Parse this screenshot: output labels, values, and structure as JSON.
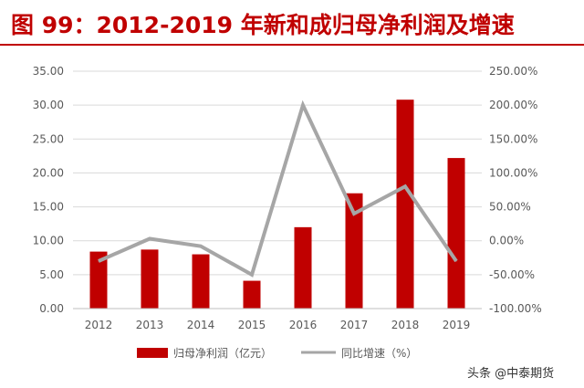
{
  "title": "图 99：2012-2019 年新和成归母净利润及增速",
  "watermark": "头条 @中泰期货",
  "colors": {
    "bar": "#c00000",
    "line": "#a6a6a6",
    "title": "#c00000",
    "axis_text": "#595959",
    "grid": "#d9d9d9"
  },
  "chart_data": {
    "type": "bar",
    "categories": [
      "2012",
      "2013",
      "2014",
      "2015",
      "2016",
      "2017",
      "2018",
      "2019"
    ],
    "series": [
      {
        "name": "归母净利润（亿元）",
        "type": "bar",
        "axis": "left",
        "values": [
          8.4,
          8.7,
          8.0,
          4.1,
          12.0,
          17.0,
          30.8,
          22.2
        ]
      },
      {
        "name": "同比增速（%）",
        "type": "line",
        "axis": "right",
        "values": [
          -30.0,
          3.0,
          -8.0,
          -50.0,
          200.0,
          40.0,
          80.0,
          -30.0
        ]
      }
    ],
    "ylim_left": [
      0,
      35
    ],
    "ylim_right": [
      -100,
      250
    ],
    "yticks_left": [
      "0.00",
      "5.00",
      "10.00",
      "15.00",
      "20.00",
      "25.00",
      "30.00",
      "35.00"
    ],
    "yticks_right": [
      "-100.00%",
      "-50.00%",
      "0.00%",
      "50.00%",
      "100.00%",
      "150.00%",
      "200.00%",
      "250.00%"
    ],
    "grid": true,
    "legend_position": "bottom"
  }
}
